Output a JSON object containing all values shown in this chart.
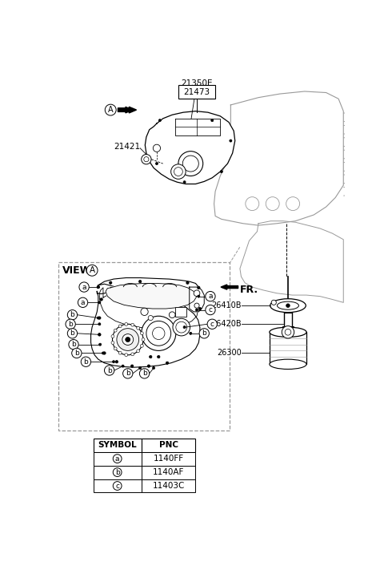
{
  "bg_color": "#ffffff",
  "lc": "#000000",
  "gc": "#999999",
  "fig_w": 4.8,
  "fig_h": 7.06,
  "dpi": 100,
  "symbols": [
    "a",
    "b",
    "c"
  ],
  "pnc": [
    "1140FF",
    "1140AF",
    "11403C"
  ]
}
